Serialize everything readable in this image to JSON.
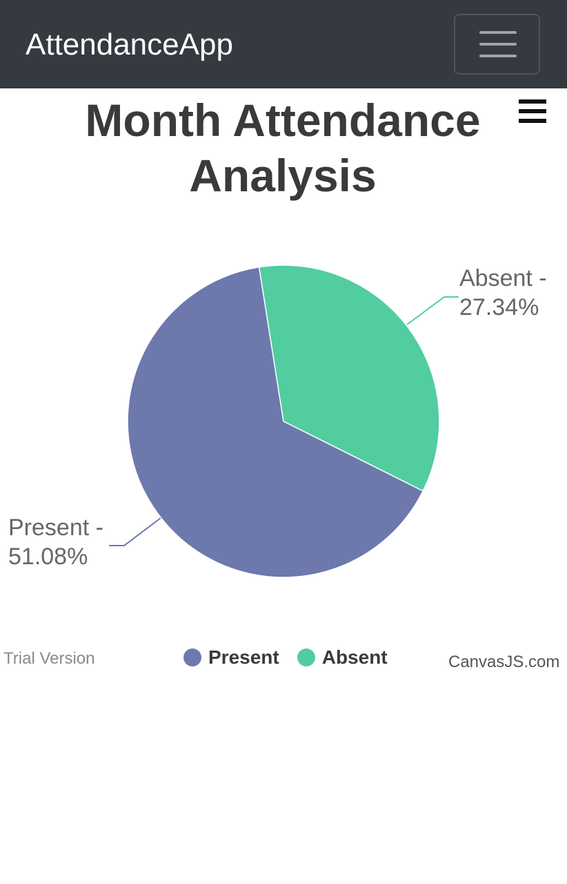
{
  "navbar": {
    "brand": "AttendanceApp",
    "toggler_icon": "hamburger-icon"
  },
  "chart_menu": {
    "icon": "hamburger-menu-icon"
  },
  "chart_data": {
    "type": "pie",
    "title": "Month Attendance Analysis",
    "title_lines": [
      "Month Attendance",
      "Analysis"
    ],
    "slices": [
      {
        "name": "Present",
        "label_lines": [
          "Present -",
          "51.08%"
        ],
        "value": 51.08,
        "color": "#6d78ad"
      },
      {
        "name": "Absent",
        "label_lines": [
          "Absent -",
          "27.34%"
        ],
        "value": 27.34,
        "color": "#51cda0"
      }
    ],
    "legend": {
      "position": "bottom",
      "items": [
        "Present",
        "Absent"
      ]
    }
  },
  "footer": {
    "trial": "Trial Version",
    "credit": "CanvasJS.com"
  }
}
